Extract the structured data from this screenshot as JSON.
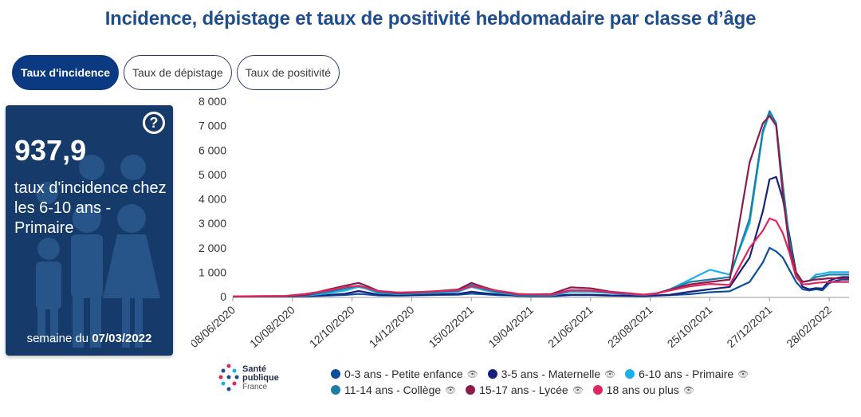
{
  "title": "Incidence, dépistage et taux de positivité hebdomadaire par classe d’âge",
  "tabs": [
    {
      "label": "Taux d'incidence",
      "active": true
    },
    {
      "label": "Taux de dépistage",
      "active": false
    },
    {
      "label": "Taux de positivité",
      "active": false
    }
  ],
  "card": {
    "value": "937,9",
    "description": "taux d'incidence chez les 6-10 ans - Primaire",
    "week_prefix": "semaine du ",
    "week_date": "07/03/2022",
    "help_icon": "question-icon",
    "background": "#163a6a"
  },
  "logo": {
    "line1": "Santé",
    "line2": "publique",
    "line3": "France"
  },
  "chart_data": {
    "type": "line",
    "x_tick_labels": [
      "08/06/2020",
      "10/08/2020",
      "12/10/2020",
      "14/12/2020",
      "15/02/2021",
      "19/04/2021",
      "21/06/2021",
      "23/08/2021",
      "25/10/2021",
      "27/12/2021",
      "28/02/2022"
    ],
    "x_tick_weeks": [
      0,
      9,
      18,
      27,
      36,
      45,
      54,
      63,
      72,
      81,
      90
    ],
    "y_ticks": [
      0,
      1000,
      2000,
      3000,
      4000,
      5000,
      6000,
      7000,
      8000
    ],
    "y_tick_labels": [
      "0",
      "1 000",
      "2 000",
      "3 000",
      "4 000",
      "5 000",
      "6 000",
      "7 000",
      "8 000"
    ],
    "ylim": [
      0,
      8000
    ],
    "x_weeks": [
      0,
      4,
      8,
      11,
      14,
      17,
      19,
      20,
      22,
      25,
      28,
      31,
      34,
      36,
      38,
      40,
      42,
      43,
      45,
      48,
      51,
      54,
      57,
      60,
      62,
      64,
      66,
      69,
      72,
      75,
      78,
      80,
      81,
      82,
      83,
      84,
      85,
      86,
      87,
      88,
      89,
      90,
      91,
      92,
      93
    ],
    "series": [
      {
        "name": "0-3 ans - Petite enfance",
        "color": "#0b4f9c",
        "values": [
          5,
          5,
          8,
          15,
          40,
          70,
          110,
          90,
          50,
          40,
          55,
          70,
          80,
          120,
          90,
          60,
          50,
          30,
          20,
          15,
          60,
          60,
          40,
          30,
          20,
          40,
          60,
          100,
          180,
          220,
          600,
          1400,
          2000,
          1850,
          1600,
          1100,
          600,
          300,
          250,
          300,
          260,
          550,
          650,
          700,
          700
        ]
      },
      {
        "name": "3-5 ans - Maternelle",
        "color": "#17207a",
        "values": [
          5,
          8,
          10,
          20,
          60,
          120,
          230,
          180,
          80,
          60,
          70,
          90,
          110,
          200,
          140,
          90,
          60,
          40,
          30,
          25,
          80,
          80,
          50,
          40,
          25,
          50,
          80,
          200,
          300,
          400,
          1600,
          3500,
          4800,
          4900,
          4000,
          2500,
          1000,
          400,
          300,
          350,
          330,
          650,
          750,
          800,
          800
        ]
      },
      {
        "name": "6-10 ans - Primaire",
        "color": "#1bb0e8",
        "values": [
          8,
          10,
          15,
          40,
          120,
          250,
          400,
          330,
          150,
          100,
          130,
          160,
          200,
          400,
          260,
          160,
          100,
          60,
          50,
          40,
          200,
          200,
          140,
          100,
          60,
          120,
          300,
          700,
          1100,
          900,
          3000,
          6700,
          7500,
          7000,
          4500,
          2200,
          900,
          600,
          650,
          900,
          938,
          1000,
          1000,
          1000,
          1000
        ]
      },
      {
        "name": "11-14 ans - Collège",
        "color": "#1a7fa3",
        "values": [
          8,
          10,
          15,
          50,
          180,
          330,
          450,
          380,
          180,
          120,
          150,
          190,
          240,
          480,
          300,
          190,
          120,
          70,
          60,
          50,
          260,
          240,
          160,
          110,
          70,
          130,
          300,
          600,
          700,
          800,
          3200,
          6800,
          7600,
          7100,
          4600,
          2300,
          900,
          600,
          650,
          800,
          850,
          900,
          900,
          900,
          900
        ]
      },
      {
        "name": "15-17 ans - Lycée",
        "color": "#8c1b4a",
        "values": [
          8,
          12,
          20,
          70,
          260,
          450,
          560,
          460,
          230,
          150,
          180,
          230,
          290,
          560,
          380,
          230,
          150,
          90,
          90,
          100,
          380,
          340,
          200,
          130,
          80,
          140,
          280,
          500,
          600,
          700,
          5500,
          7100,
          7400,
          7000,
          4200,
          2000,
          1000,
          600,
          650,
          700,
          720,
          750,
          750,
          750,
          750
        ]
      },
      {
        "name": "18 ans ou plus",
        "color": "#e0245e",
        "values": [
          10,
          20,
          30,
          110,
          230,
          400,
          430,
          380,
          230,
          170,
          190,
          220,
          260,
          420,
          350,
          240,
          160,
          110,
          90,
          80,
          260,
          250,
          180,
          120,
          80,
          130,
          250,
          420,
          520,
          480,
          2000,
          2700,
          3200,
          3100,
          2600,
          1800,
          800,
          500,
          520,
          560,
          580,
          600,
          600,
          600,
          600
        ]
      }
    ],
    "legend": "bottom",
    "grid": false
  }
}
